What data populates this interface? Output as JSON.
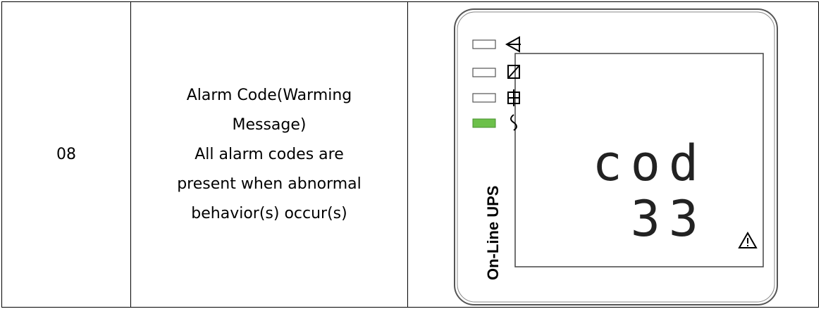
{
  "table": {
    "rows": [
      {
        "code": "08",
        "description": [
          "Alarm Code(Warming",
          "Message)",
          "All alarm codes are",
          "present when abnormal",
          "behavior(s) occur(s)"
        ],
        "panel": {
          "brand": "On-Line UPS",
          "display": [
            "cod",
            "33"
          ]
        }
      }
    ]
  }
}
